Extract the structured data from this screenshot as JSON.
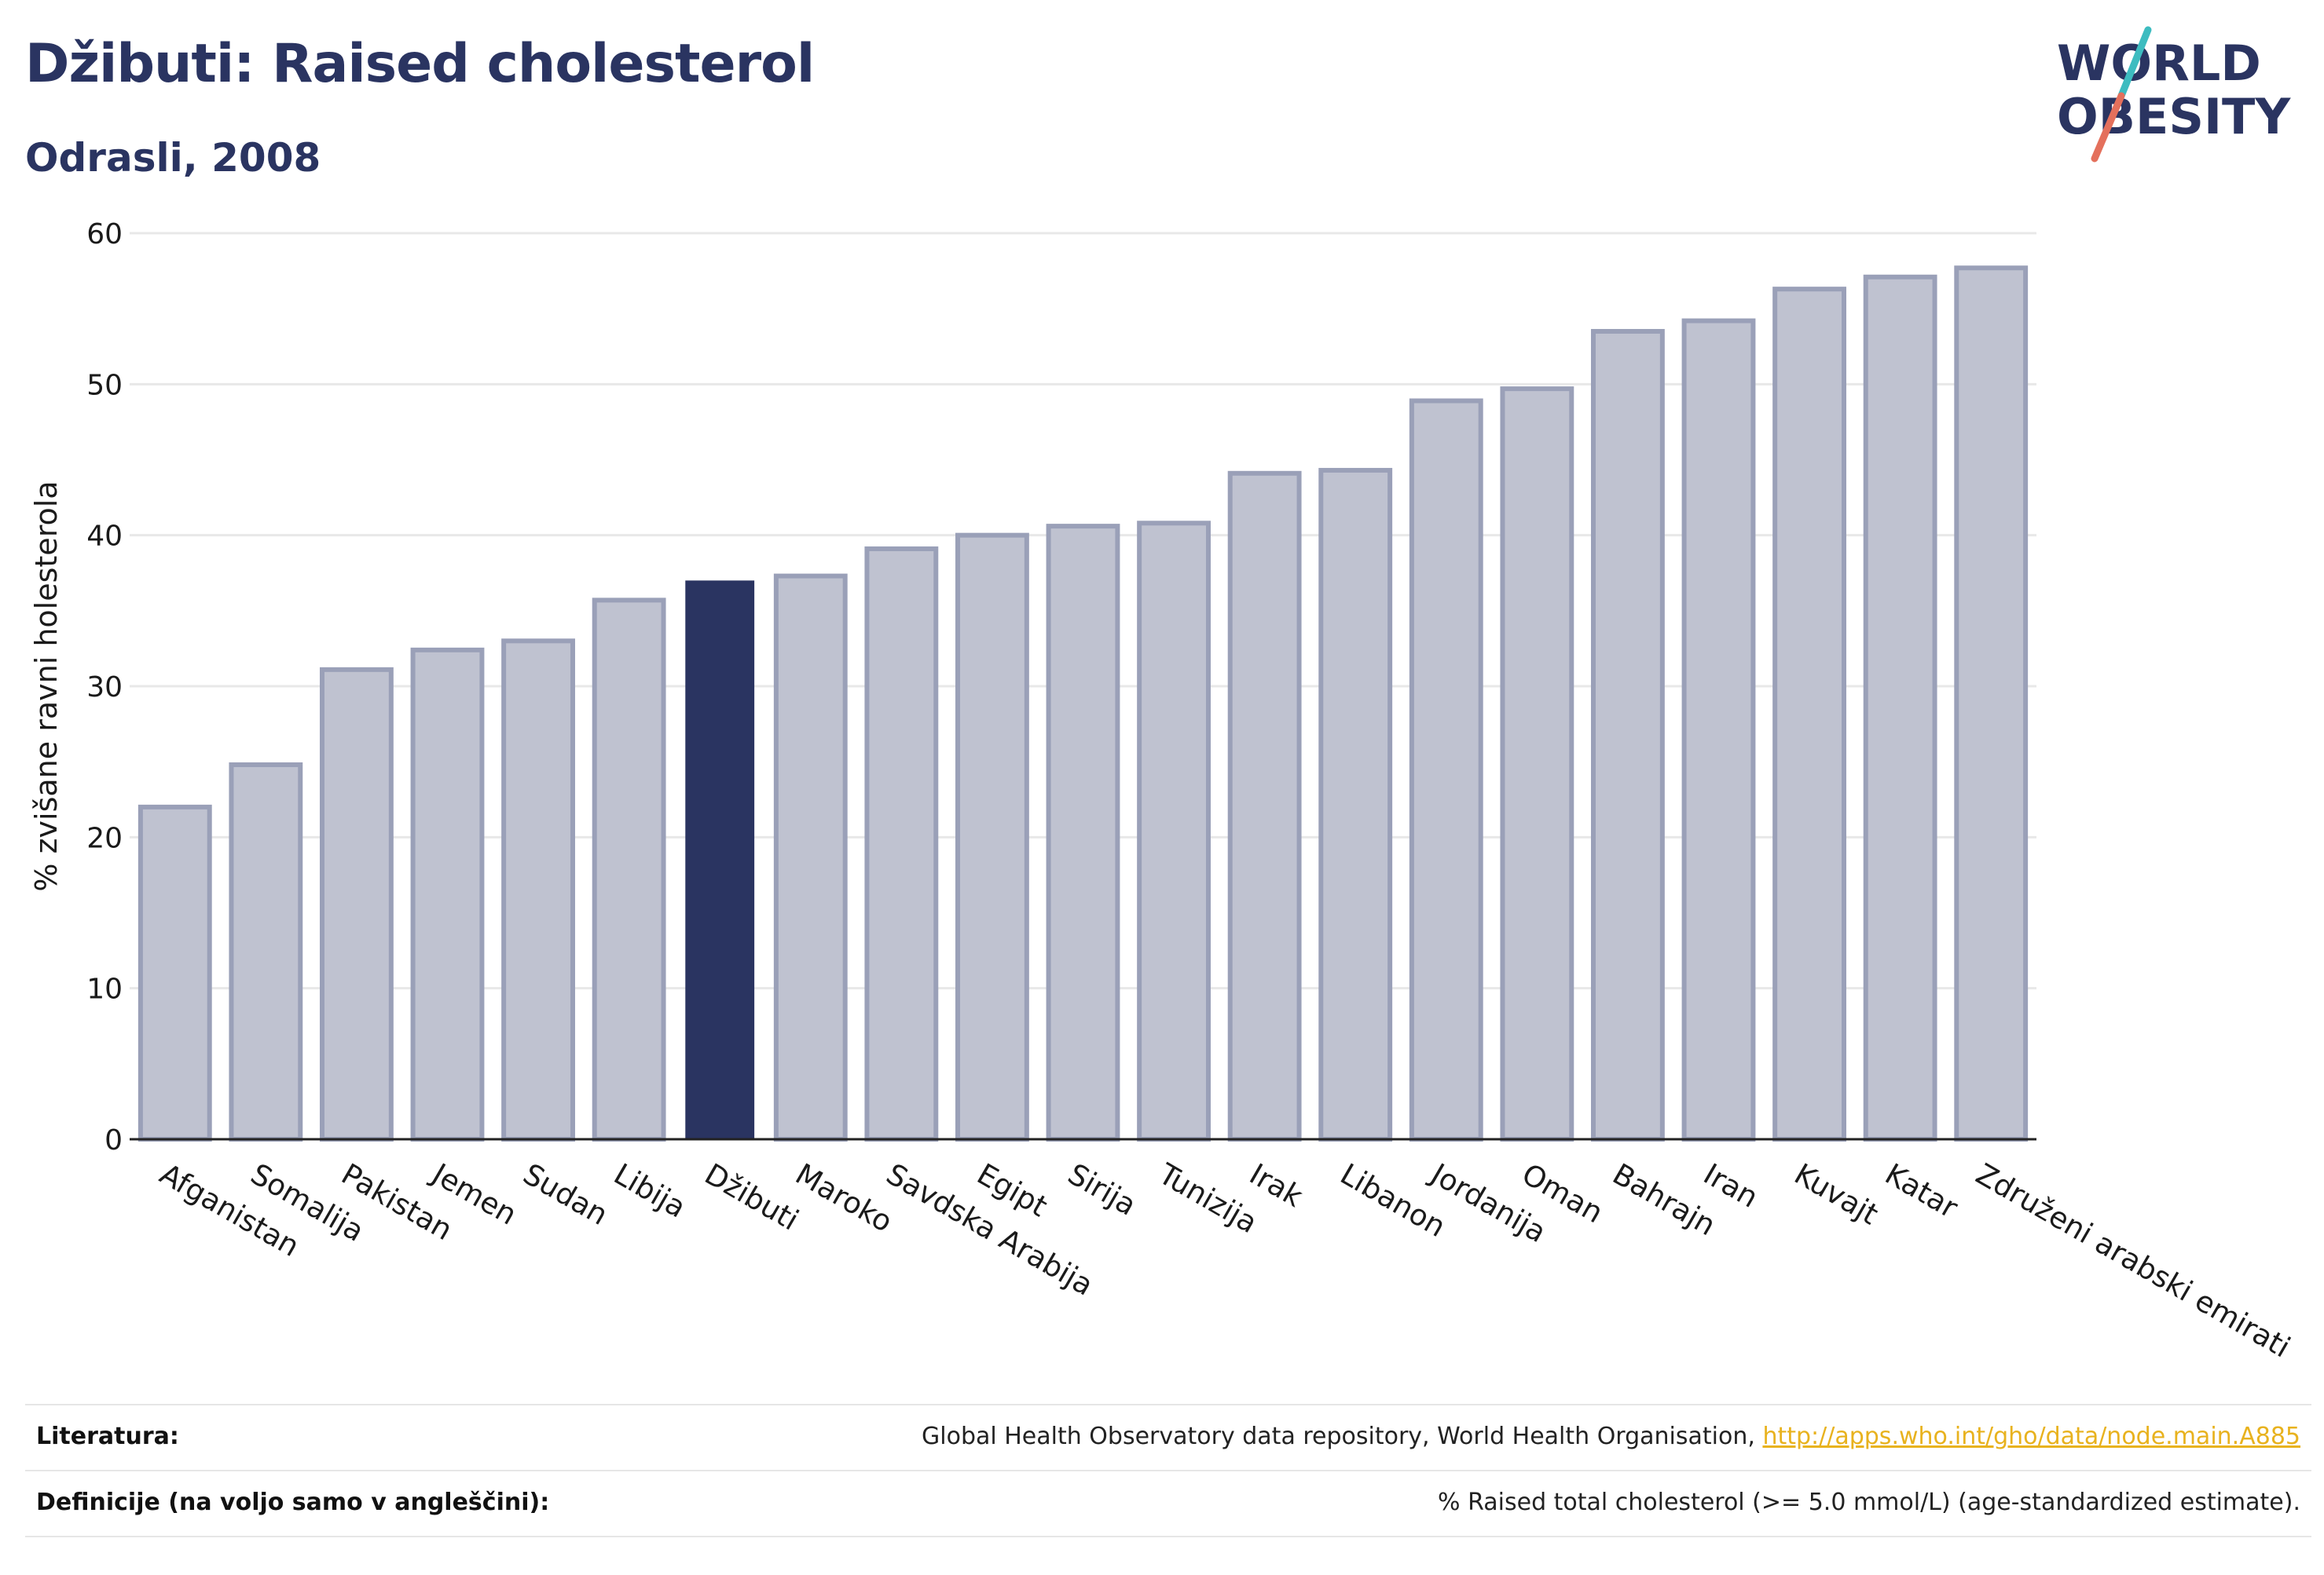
{
  "header": {
    "title": "Džibuti: Raised cholesterol",
    "subtitle": "Odrasli, 2008"
  },
  "logo": {
    "line1": "WORLD",
    "line2": "OBESITY",
    "text_color": "#2a3461",
    "slash_colors": [
      "#3dbcc0",
      "#e4705c"
    ]
  },
  "colors": {
    "highlight_bar": "#2a3461",
    "bar_fill": "#bfc2d0",
    "bar_stroke": "#9aa0b8",
    "grid": "#e8e8e8",
    "axis": "#222222"
  },
  "chart_data": {
    "type": "bar",
    "ylabel": "% zvišane ravni holesterola",
    "xlabel": "",
    "ylim": [
      0,
      60
    ],
    "yticks": [
      0,
      10,
      20,
      30,
      40,
      50,
      60
    ],
    "grid": true,
    "highlight": "Džibuti",
    "categories": [
      "Afganistan",
      "Somalija",
      "Pakistan",
      "Jemen",
      "Sudan",
      "Libija",
      "Džibuti",
      "Maroko",
      "Savdska Arabija",
      "Egipt",
      "Sirija",
      "Tunizija",
      "Irak",
      "Libanon",
      "Jordanija",
      "Oman",
      "Bahrajn",
      "Iran",
      "Kuvajt",
      "Katar",
      "Združeni arabski emirati"
    ],
    "values": [
      22.0,
      24.8,
      31.1,
      32.4,
      33.0,
      35.7,
      37.0,
      37.3,
      39.1,
      40.0,
      40.6,
      40.8,
      44.1,
      44.3,
      48.9,
      49.7,
      53.5,
      54.2,
      56.3,
      57.1,
      57.7
    ]
  },
  "footer": {
    "references_label": "Literatura:",
    "references_text": "Global Health Observatory data repository, World Health Organisation, ",
    "references_link": "http://apps.who.int/gho/data/node.main.A885",
    "definitions_label": "Definicije (na voljo samo v angleščini):",
    "definitions_text": "% Raised total cholesterol (>= 5.0 mmol/L) (age-standardized estimate)."
  }
}
